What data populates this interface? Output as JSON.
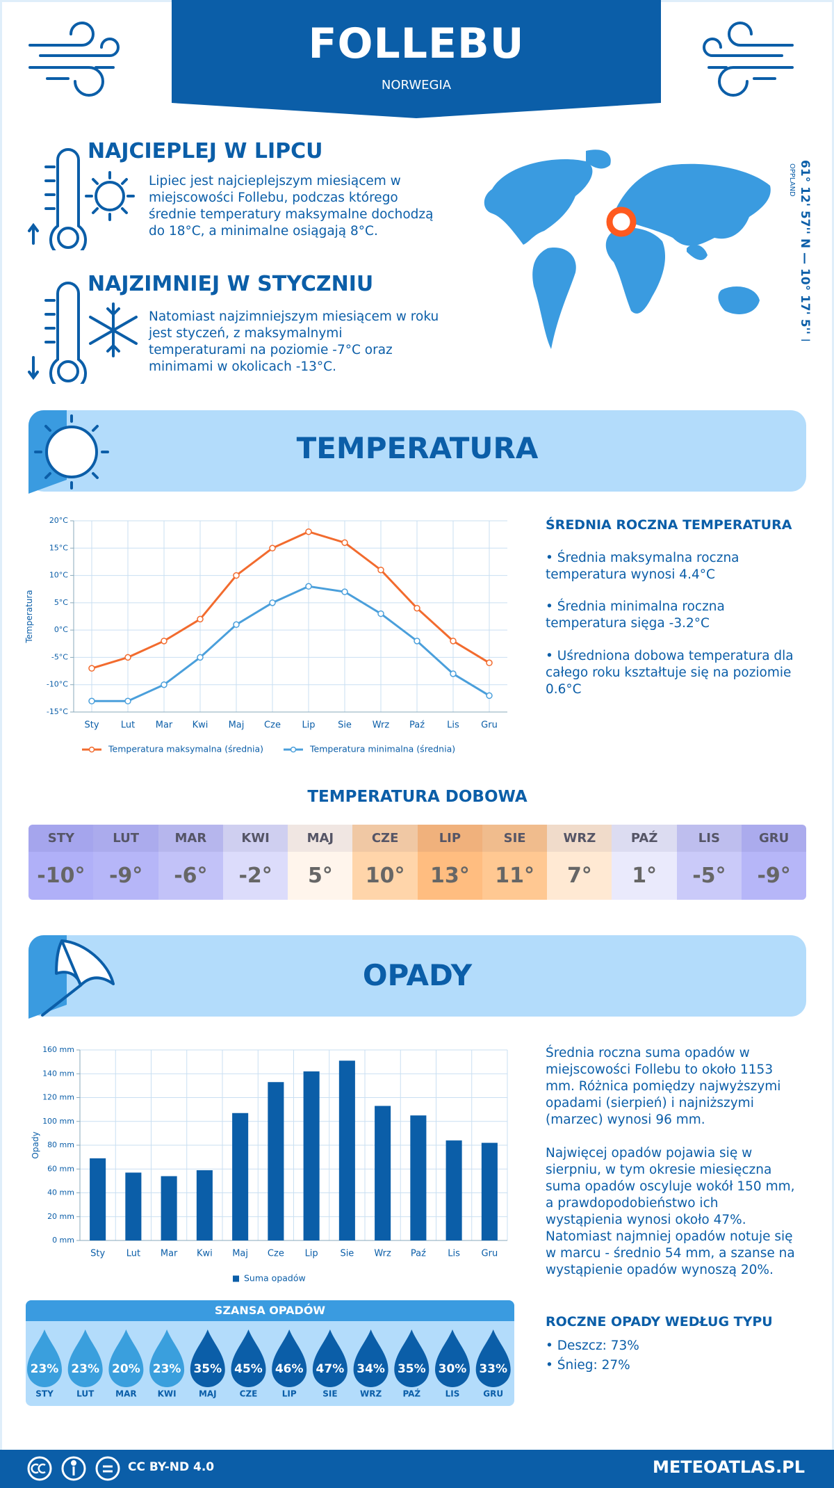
{
  "header": {
    "title": "FOLLEBU",
    "subtitle": "NORWEGIA"
  },
  "facts": [
    {
      "title": "NAJCIEPLEJ W LIPCU",
      "text": "Lipiec jest najcieplejszym miesiącem w miejscowości Follebu, podczas którego średnie temperatury maksymalne dochodzą do 18°C, a minimalne osiągają 8°C."
    },
    {
      "title": "NAJZIMNIEJ W STYCZNIU",
      "text": "Natomiast najzimniejszym miesiącem w roku jest styczeń, z maksymalnymi temperaturami na poziomie -7°C oraz minimami w okolicach -13°C."
    }
  ],
  "map": {
    "coordinates": "61° 12' 57'' N — 10° 17' 5'' E",
    "region": "OPPLAND"
  },
  "temperature": {
    "title": "TEMPERATURA",
    "summary_title": "ŚREDNIA ROCZNA TEMPERATURA",
    "summary": [
      "• Średnia maksymalna roczna temperatura wynosi 4.4°C",
      "• Średnia minimalna roczna temperatura sięga -3.2°C",
      "• Uśredniona dobowa temperatura dla całego roku kształtuje się na poziomie 0.6°C"
    ]
  },
  "daily": {
    "title": "TEMPERATURA DOBOWA",
    "months": [
      "STY",
      "LUT",
      "MAR",
      "KWI",
      "MAJ",
      "CZE",
      "LIP",
      "SIE",
      "WRZ",
      "PAŹ",
      "LIS",
      "GRU"
    ],
    "values": [
      "-10°",
      "-9°",
      "-6°",
      "-2°",
      "5°",
      "10°",
      "13°",
      "11°",
      "7°",
      "1°",
      "-5°",
      "-9°"
    ],
    "colors": [
      "#b0b0f8",
      "#b6b6f8",
      "#c2c2f8",
      "#dcdcfb",
      "#fff5ec",
      "#ffd5aa",
      "#ffbd80",
      "#ffc892",
      "#ffe9d3",
      "#eaeafc",
      "#cacaf9",
      "#b6b6f8"
    ]
  },
  "precipitation": {
    "title": "OPADY",
    "text": [
      "Średnia roczna suma opadów w miejscowości Follebu to około 1153 mm. Różnica pomiędzy najwyższymi opadami (sierpień) i najniższymi (marzec) wynosi 96 mm.",
      "Najwięcej opadów pojawia się w sierpniu, w tym okresie miesięczna suma opadów oscyluje wokół 150 mm, a prawdopodobieństwo ich wystąpienia wynosi około 47%. Natomiast najmniej opadów notuje się w marcu - średnio 54 mm, a szanse na wystąpienie opadów wynoszą 20%."
    ],
    "chance_title": "SZANSA OPADÓW",
    "chance_months": [
      "STY",
      "LUT",
      "MAR",
      "KWI",
      "MAJ",
      "CZE",
      "LIP",
      "SIE",
      "WRZ",
      "PAŹ",
      "LIS",
      "GRU"
    ],
    "chance": [
      "23%",
      "23%",
      "20%",
      "23%",
      "35%",
      "45%",
      "46%",
      "47%",
      "34%",
      "35%",
      "30%",
      "33%"
    ],
    "chance_colors": [
      "#3a9fdd",
      "#3a9fdd",
      "#3a9fdd",
      "#3a9fdd",
      "#0b5ea8",
      "#0b5ea8",
      "#0b5ea8",
      "#0b5ea8",
      "#0b5ea8",
      "#0b5ea8",
      "#0b5ea8",
      "#0b5ea8"
    ],
    "type_title": "ROCZNE OPADY WEDŁUG TYPU",
    "types": [
      "• Deszcz: 73%",
      "• Śnieg: 27%"
    ]
  },
  "footer": {
    "license": "CC BY-ND 4.0",
    "site": "METEOATLAS.PL"
  },
  "chart_data": [
    {
      "type": "line",
      "y_label": "Temperatura",
      "categories": [
        "Sty",
        "Lut",
        "Mar",
        "Kwi",
        "Maj",
        "Cze",
        "Lip",
        "Sie",
        "Wrz",
        "Paź",
        "Lis",
        "Gru"
      ],
      "series": [
        {
          "name": "Temperatura maksymalna (średnia)",
          "color": "#f26b2e",
          "values": [
            -7,
            -5,
            -2,
            2,
            10,
            15,
            18,
            16,
            11,
            4,
            -2,
            -6
          ]
        },
        {
          "name": "Temperatura minimalna (średnia)",
          "color": "#4a9fdb",
          "values": [
            -13,
            -13,
            -10,
            -5,
            1,
            5,
            8,
            7,
            3,
            -2,
            -8,
            -12
          ]
        }
      ],
      "ylim": [
        -15,
        20
      ],
      "yticks": [
        {
          "value": -15,
          "label": "-15°C"
        },
        {
          "value": -10,
          "label": "-10°C"
        },
        {
          "value": -5,
          "label": "-5°C"
        },
        {
          "value": 0,
          "label": "0°C"
        },
        {
          "value": 5,
          "label": "5°C"
        },
        {
          "value": 10,
          "label": "10°C"
        },
        {
          "value": 15,
          "label": "15°C"
        },
        {
          "value": 20,
          "label": "20°C"
        }
      ],
      "grid": true
    },
    {
      "type": "bar",
      "y_label": "Opady",
      "categories": [
        "Sty",
        "Lut",
        "Mar",
        "Kwi",
        "Maj",
        "Cze",
        "Lip",
        "Sie",
        "Wrz",
        "Paź",
        "Lis",
        "Gru"
      ],
      "series": [
        {
          "name": "Suma opadów",
          "color": "#0b5ea8",
          "values": [
            69,
            57,
            54,
            59,
            107,
            133,
            142,
            151,
            113,
            105,
            84,
            82
          ]
        }
      ],
      "ylim": [
        0,
        160
      ],
      "yticks": [
        {
          "value": 0,
          "label": "0 mm"
        },
        {
          "value": 20,
          "label": "20 mm"
        },
        {
          "value": 40,
          "label": "40 mm"
        },
        {
          "value": 60,
          "label": "60 mm"
        },
        {
          "value": 80,
          "label": "80 mm"
        },
        {
          "value": 100,
          "label": "100 mm"
        },
        {
          "value": 120,
          "label": "120 mm"
        },
        {
          "value": 140,
          "label": "140 mm"
        },
        {
          "value": 160,
          "label": "160 mm"
        }
      ],
      "grid": true
    }
  ]
}
